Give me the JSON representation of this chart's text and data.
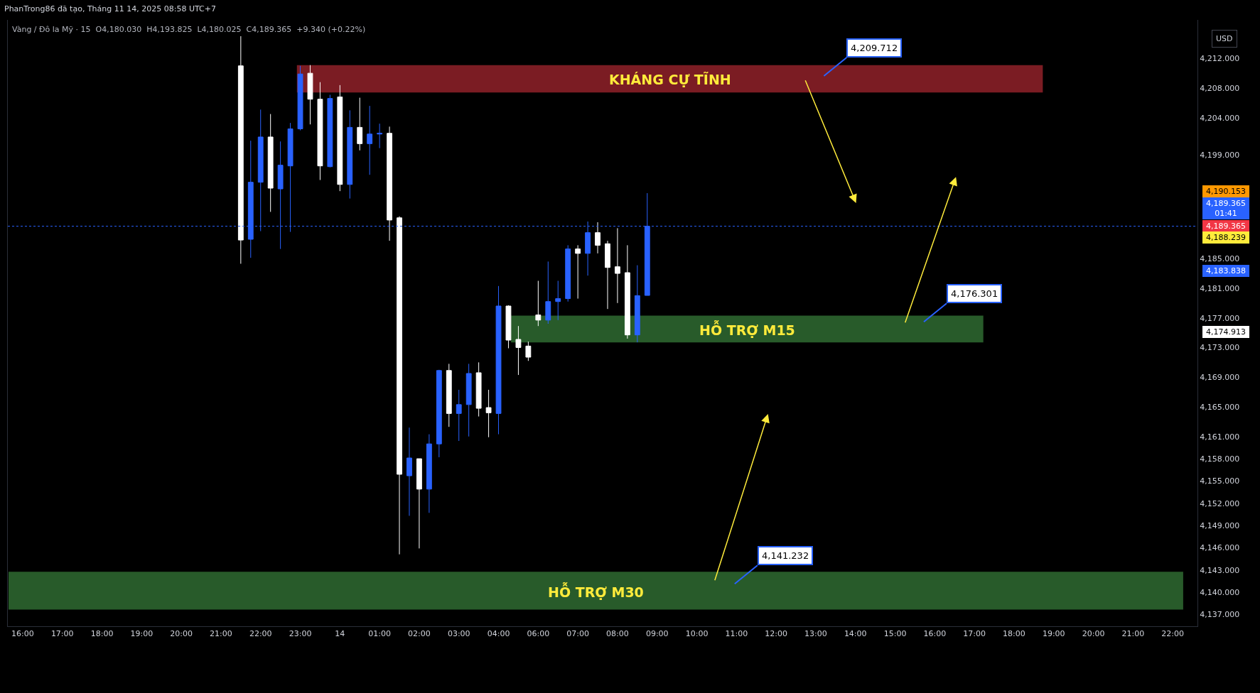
{
  "chart_data": {
    "type": "candlestick",
    "title": "PhanTrong86 đã tạo, Tháng 11 14, 2025 08:58 UTC+7",
    "subtitle": "Vàng / Đô la Mỹ · 15  O4,180.030  H4,193.825  L4,180.025  C4,189.365  +9.340 (+0.22%)",
    "categories": [
      null,
      "16:00",
      null,
      null,
      null,
      "17:00",
      null,
      null,
      null,
      "18:00",
      null,
      null,
      null,
      "19:00",
      null,
      null,
      null,
      "20:00",
      null,
      null,
      null,
      "21:00",
      null,
      null,
      null,
      "22:00",
      null,
      null,
      null,
      "23:00",
      null,
      null,
      null,
      "14",
      null,
      null,
      null,
      "01:00",
      null,
      null,
      null,
      "02:00",
      null,
      null,
      null,
      "03:00",
      null,
      null,
      null,
      "04:00",
      null,
      null,
      null,
      "06:00",
      null,
      null,
      null,
      "07:00",
      null,
      null,
      null,
      "08:00",
      null,
      null,
      null,
      "09:00",
      null,
      null,
      null,
      "10:00",
      null,
      null,
      null,
      "11:00",
      null,
      null,
      null,
      "12:00",
      null,
      null,
      null,
      "13:00",
      null,
      null,
      null,
      "14:00",
      null,
      null,
      null,
      "15:00",
      null,
      null,
      null,
      "16:00",
      null,
      null,
      null,
      "17:00",
      null,
      null,
      null,
      "18:00",
      null,
      null,
      null,
      "19:00",
      null,
      null,
      null,
      "20:00",
      null,
      null,
      null,
      "21:00",
      null,
      null,
      null,
      "22:00",
      null,
      null
    ],
    "ohlc": [
      null,
      null,
      null,
      null,
      null,
      null,
      null,
      null,
      null,
      null,
      null,
      null,
      null,
      null,
      null,
      null,
      null,
      null,
      null,
      null,
      null,
      null,
      null,
      [
        4211.0,
        4215.0,
        4184.3,
        4187.5
      ],
      [
        4187.6,
        4200.9,
        4185.1,
        4195.3
      ],
      [
        4195.3,
        4205.1,
        4188.7,
        4201.4
      ],
      [
        4201.4,
        4204.5,
        4191.3,
        4194.5
      ],
      [
        4194.4,
        4200.8,
        4186.3,
        4197.6
      ],
      [
        4197.5,
        4203.3,
        4188.6,
        4202.5
      ],
      [
        4202.5,
        4211.0,
        4202.3,
        4209.9
      ],
      [
        4210.0,
        4211.1,
        4203.1,
        4206.5
      ],
      [
        4206.5,
        4208.8,
        4195.6,
        4197.5
      ],
      [
        4197.4,
        4207.1,
        4197.3,
        4206.6
      ],
      [
        4206.8,
        4208.4,
        4194.1,
        4195.0
      ],
      [
        4195.0,
        4205.0,
        4193.1,
        4202.7
      ],
      [
        4202.7,
        4206.7,
        4199.6,
        4200.5
      ],
      [
        4200.5,
        4205.6,
        4196.3,
        4201.8
      ],
      [
        4201.8,
        4203.2,
        4199.9,
        4201.9
      ],
      [
        4201.9,
        4202.8,
        4187.4,
        4190.2
      ],
      [
        4190.5,
        4190.7,
        4145.1,
        4155.9
      ],
      [
        4155.7,
        4162.2,
        4150.3,
        4158.1
      ],
      [
        4158.0,
        4158.0,
        4145.9,
        4153.9
      ],
      [
        4153.9,
        4161.3,
        4150.7,
        4160.0
      ],
      [
        4160.0,
        4170.0,
        4158.2,
        4169.9
      ],
      [
        4169.9,
        4170.8,
        4162.3,
        4164.1
      ],
      [
        4164.1,
        4167.3,
        4160.4,
        4165.3
      ],
      [
        4165.3,
        4170.8,
        4161.0,
        4169.5
      ],
      [
        4169.6,
        4171.0,
        4163.7,
        4164.8
      ],
      [
        4164.9,
        4167.3,
        4160.9,
        4164.2
      ],
      [
        4164.1,
        4181.3,
        4161.3,
        4178.6
      ],
      [
        4178.6,
        4178.7,
        4172.9,
        4174.0
      ],
      [
        4174.1,
        4175.9,
        4169.3,
        4173.0
      ],
      [
        4173.2,
        4173.8,
        4171.2,
        4171.7
      ],
      [
        4177.4,
        4182.0,
        4175.9,
        4176.7
      ],
      [
        4176.7,
        4184.6,
        4176.2,
        4179.2
      ],
      [
        4179.2,
        4182.0,
        4176.7,
        4179.6
      ],
      [
        4179.6,
        4186.8,
        4179.2,
        4186.3
      ],
      [
        4186.3,
        4186.8,
        4179.6,
        4185.7
      ],
      [
        4185.7,
        4190.0,
        4182.7,
        4188.5
      ],
      [
        4188.5,
        4189.9,
        4185.7,
        4186.8
      ],
      [
        4187.0,
        4187.4,
        4178.2,
        4183.8
      ],
      [
        4183.9,
        4189.1,
        4179.0,
        4183.0
      ],
      [
        4183.1,
        4186.8,
        4174.2,
        4174.7
      ],
      [
        4174.7,
        4184.1,
        4173.7,
        4180.0
      ],
      [
        4180.03,
        4193.825,
        4180.025,
        4189.365
      ],
      null,
      null,
      null,
      null,
      null,
      null,
      null,
      null,
      null,
      null,
      null,
      null,
      null,
      null,
      null,
      null,
      null,
      null,
      null,
      null,
      null,
      null,
      null,
      null,
      null,
      null,
      null,
      null,
      null,
      null,
      null,
      null,
      null,
      null,
      null,
      null,
      null,
      null,
      null,
      null,
      null,
      null,
      null,
      null,
      null,
      null,
      null,
      null,
      null,
      null,
      null,
      null,
      null,
      null,
      null
    ],
    "colors": [
      null,
      null,
      null,
      null,
      null,
      null,
      null,
      null,
      null,
      null,
      null,
      null,
      null,
      null,
      null,
      null,
      null,
      null,
      null,
      null,
      null,
      null,
      null,
      "#ffffff",
      "#2962ff",
      "#2962ff",
      "#ffffff",
      "#2962ff",
      "#2962ff",
      "#2962ff",
      "#ffffff",
      "#ffffff",
      "#2962ff",
      "#ffffff",
      "#2962ff",
      "#ffffff",
      "#2962ff",
      "#2962ff",
      "#ffffff",
      "#ffffff",
      "#2962ff",
      "#ffffff",
      "#2962ff",
      "#2962ff",
      "#ffffff",
      "#2962ff",
      "#2962ff",
      "#ffffff",
      "#ffffff",
      "#2962ff",
      "#ffffff",
      "#ffffff",
      "#ffffff",
      "#ffffff",
      "#2962ff",
      "#2962ff",
      "#2962ff",
      "#ffffff",
      "#2962ff",
      "#ffffff",
      "#ffffff",
      "#ffffff",
      "#ffffff",
      "#2962ff",
      "#2962ff",
      null,
      null,
      null,
      null,
      null,
      null,
      null,
      null,
      null,
      null,
      null,
      null,
      null,
      null,
      null,
      null,
      null,
      null,
      null,
      null,
      null,
      null,
      null,
      null,
      null,
      null,
      null,
      null,
      null,
      null,
      null,
      null,
      null,
      null,
      null,
      null,
      null,
      null,
      null,
      null,
      null,
      null,
      null,
      null,
      null,
      null,
      null,
      null,
      null,
      null,
      null,
      null,
      null,
      null,
      null
    ],
    "ylim": [
      4135.4,
      4217.2
    ],
    "yticks": [
      {
        "value": 4212,
        "label": "4,212.000"
      },
      {
        "value": 4208,
        "label": "4,208.000"
      },
      {
        "value": 4204,
        "label": "4,204.000"
      },
      {
        "value": 4199,
        "label": "4,199.000"
      },
      {
        "value": 4185,
        "label": "4,185.000"
      },
      {
        "value": 4181,
        "label": "4,181.000"
      },
      {
        "value": 4177,
        "label": "4,177.000"
      },
      {
        "value": 4173,
        "label": "4,173.000"
      },
      {
        "value": 4169,
        "label": "4,169.000"
      },
      {
        "value": 4165,
        "label": "4,165.000"
      },
      {
        "value": 4161,
        "label": "4,161.000"
      },
      {
        "value": 4158,
        "label": "4,158.000"
      },
      {
        "value": 4155,
        "label": "4,155.000"
      },
      {
        "value": 4152,
        "label": "4,152.000"
      },
      {
        "value": 4149,
        "label": "4,149.000"
      },
      {
        "value": 4146,
        "label": "4,146.000"
      },
      {
        "value": 4143,
        "label": "4,143.000"
      },
      {
        "value": 4140,
        "label": "4,140.000"
      },
      {
        "value": 4137,
        "label": "4,137.000"
      }
    ],
    "bands": [
      {
        "axis": "y",
        "from": 4207.4,
        "to": 4211.1,
        "label": "KHÁNG CỰ TĨNH",
        "color": "#7b1c23"
      },
      {
        "axis": "y",
        "from": 4173.7,
        "to": 4177.3,
        "label": "HỖ TRỢ M15",
        "color": "#285b2a"
      },
      {
        "axis": "y",
        "from": 4137.65,
        "to": 4142.75,
        "label": "HỖ TRỢ M30",
        "color": "#285b2a"
      }
    ],
    "ref_lines": [
      {
        "axis": "y",
        "value": 4189.365,
        "label": "4,189.365\n01:41",
        "color": "#2962ff",
        "line_style": "dotted"
      }
    ],
    "annotations": [
      "USD",
      "4,209.712",
      "4,176.301",
      "4,141.232",
      "4,190.153",
      "4,189.365",
      "4,188.239",
      "4,183.838",
      "4,174.913"
    ]
  }
}
